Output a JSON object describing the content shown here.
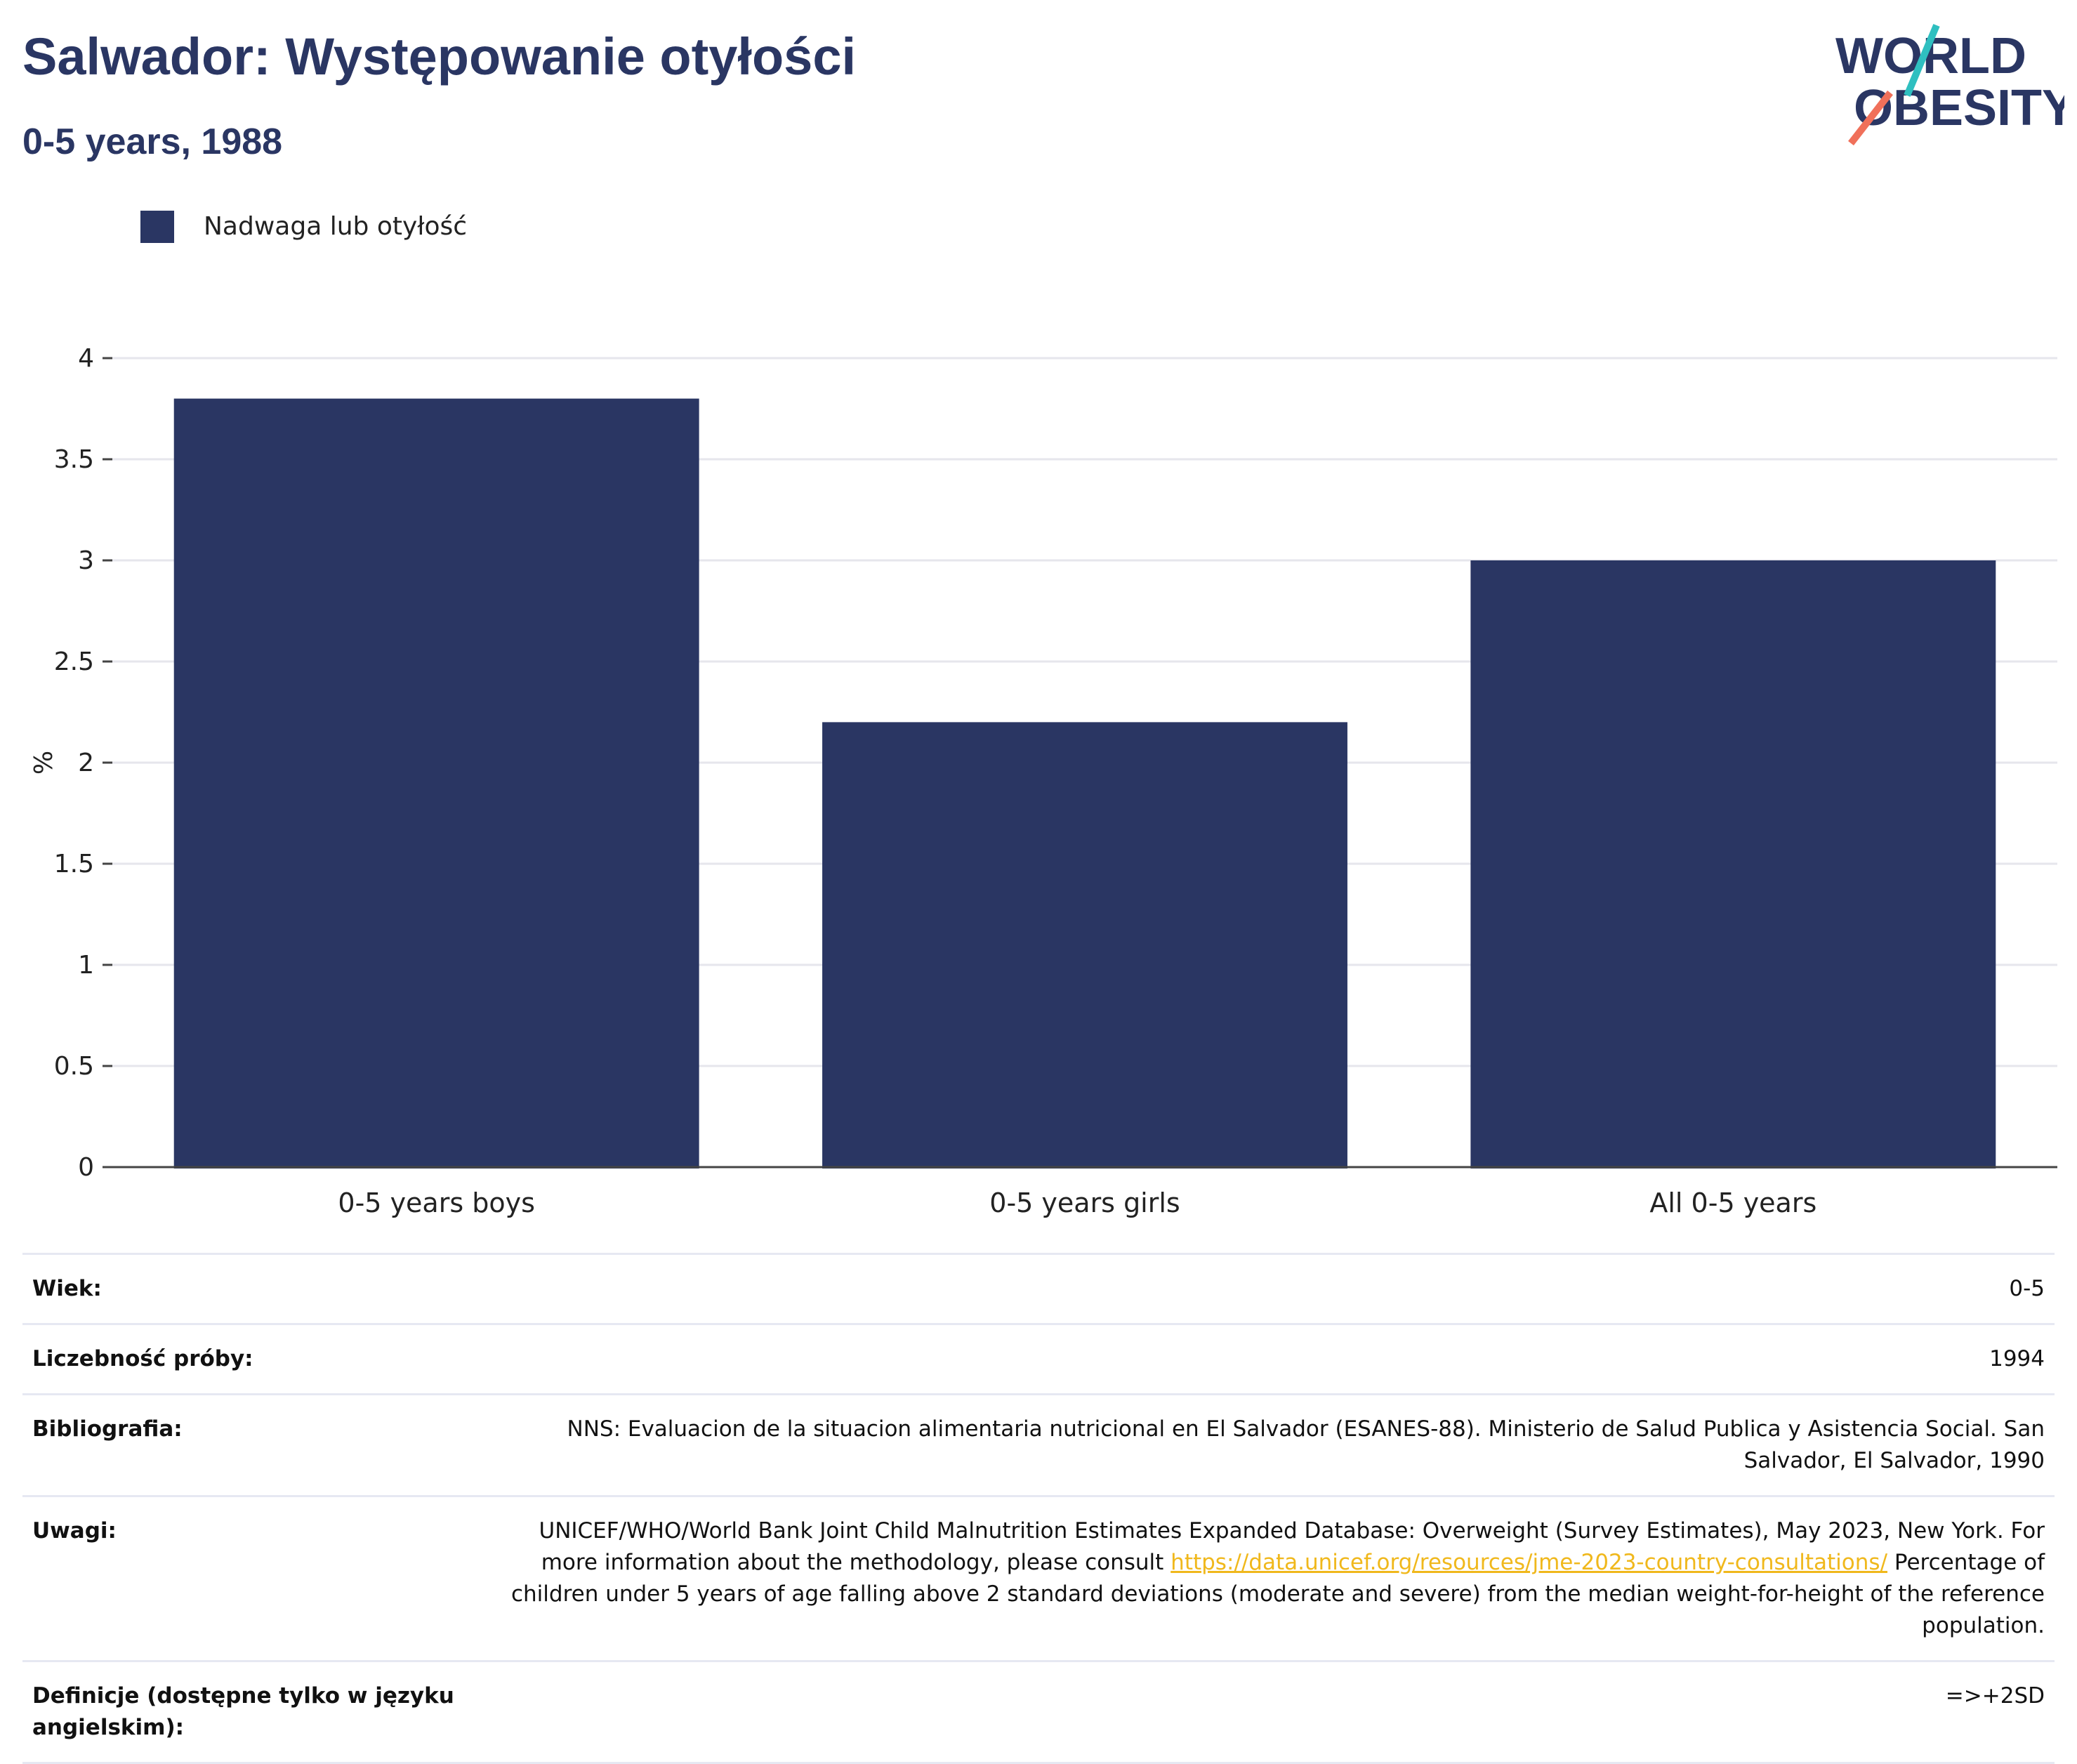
{
  "header": {
    "title": "Salwador: Występowanie otyłości",
    "subtitle": "0-5 years, 1988"
  },
  "logo": {
    "line1": "WORLD",
    "line2": "OBESITY"
  },
  "legend": {
    "label": "Nadwaga lub otyłość",
    "color": "#2a3663"
  },
  "chart_data": {
    "type": "bar",
    "categories": [
      "0-5 years boys",
      "0-5 years girls",
      "All 0-5 years"
    ],
    "series": [
      {
        "name": "Nadwaga lub otyłość",
        "values": [
          3.8,
          2.2,
          3.0
        ]
      }
    ],
    "ylabel": "%",
    "ylim": [
      0,
      4
    ],
    "yticks": [
      0,
      0.5,
      1,
      1.5,
      2,
      2.5,
      3,
      3.5,
      4
    ],
    "ytick_labels": [
      "0",
      "0.5",
      "1",
      "1.5",
      "2",
      "2.5",
      "3",
      "3.5",
      "4"
    ],
    "grid": true,
    "legend_position": "top-left",
    "bar_color": "#2a3663"
  },
  "meta": [
    {
      "key": "Wiek:",
      "value": "0-5"
    },
    {
      "key": "Liczebność próby:",
      "value": "1994"
    },
    {
      "key": "Bibliografia:",
      "value": "NNS: Evaluacion de la situacion alimentaria nutricional en El Salvador (ESANES-88). Ministerio de Salud Publica y Asistencia Social. San Salvador, El Salvador, 1990"
    },
    {
      "key": "Uwagi:",
      "value_before": "UNICEF/WHO/World Bank Joint Child Malnutrition Estimates Expanded Database: Overweight (Survey Estimates), May 2023, New York. For more information about the methodology, please consult ",
      "link": "https://data.unicef.org/resources/jme-2023-country-consultations/",
      "value_after": " Percentage of children under 5 years of age falling above 2 standard deviations (moderate and severe) from the median weight-for-height of the reference population."
    },
    {
      "key": "Definicje (dostępne tylko w języku angielskim):",
      "value": "=>+2SD"
    }
  ]
}
